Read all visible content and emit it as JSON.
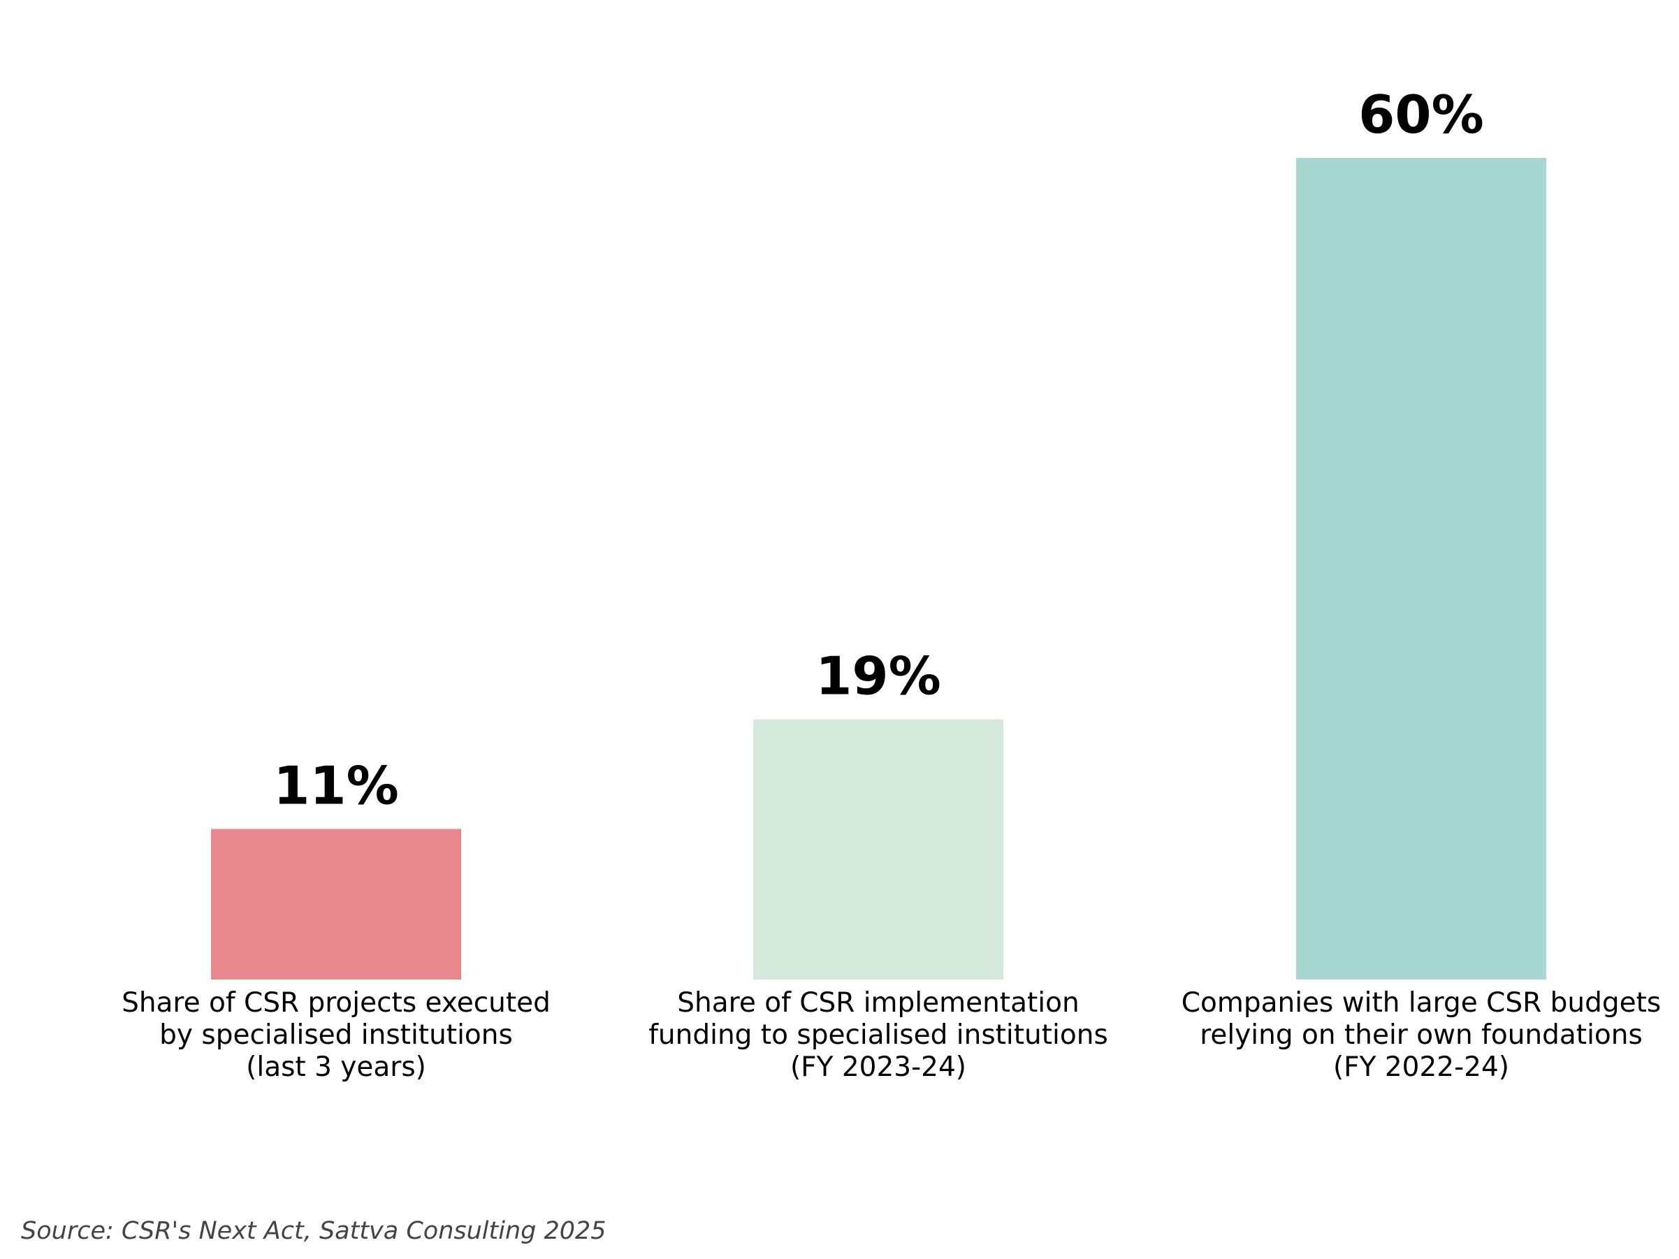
{
  "chart_data": {
    "type": "bar",
    "categories": [
      "Share of CSR projects executed by specialised institutions (last 3 years)",
      "Share of CSR implementation funding to specialised institutions (FY 2023-24)",
      "Companies with large CSR budgets relying on their own foundations (FY 2022-24)"
    ],
    "category_lines": [
      [
        "Share of CSR projects executed",
        "by specialised institutions",
        "(last 3 years)"
      ],
      [
        "Share of CSR implementation",
        "funding to specialised institutions",
        "(FY 2023-24)"
      ],
      [
        "Companies with large CSR budgets",
        "relying on their own foundations",
        "(FY 2022-24)"
      ]
    ],
    "values": [
      11,
      19,
      60
    ],
    "value_labels": [
      "11%",
      "19%",
      "60%"
    ],
    "colors": [
      "#e8888e",
      "#d4e9dc",
      "#a8d6d0"
    ],
    "ylim": [
      0,
      60
    ],
    "grid": false,
    "legend": "none",
    "source": "Source: CSR's Next Act, Sattva Consulting 2025"
  }
}
